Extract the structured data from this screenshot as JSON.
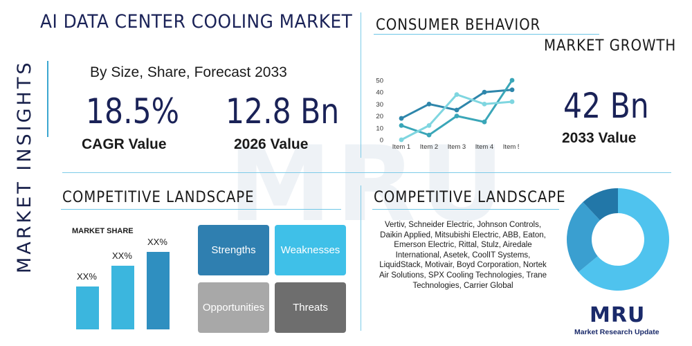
{
  "title": "AI DATA CENTER COOLING MARKET",
  "side_label": "MARKET INSIGHTS",
  "subtitle": "By Size, Share, Forecast 2033",
  "stats": {
    "cagr_value": "18.5%",
    "cagr_label": "CAGR Value",
    "size_2026_value": "12.8 Bn",
    "size_2026_label": "2026 Value",
    "size_2033_value": "42 Bn",
    "size_2033_label": "2033 Value"
  },
  "consumer_behavior": {
    "heading": "CONSUMER BEHAVIOR",
    "subheading": "MARKET GROWTH"
  },
  "chart_data": {
    "type": "line",
    "categories": [
      "Item 1",
      "Item 2",
      "Item 3",
      "Item 4",
      "Item 5"
    ],
    "ylim": [
      0,
      50
    ],
    "yticks": [
      "0",
      "10",
      "20",
      "30",
      "40",
      "50"
    ],
    "grid": false,
    "series": [
      {
        "values": [
          18,
          30,
          25,
          40,
          42
        ],
        "color": "#2e86ab"
      },
      {
        "values": [
          12,
          4,
          20,
          15,
          50
        ],
        "color": "#3aa6b8"
      },
      {
        "values": [
          0,
          12,
          38,
          30,
          32
        ],
        "color": "#7fd6e0"
      }
    ]
  },
  "competitive_left": {
    "heading": "COMPETITIVE LANDSCAPE",
    "market_share_title": "MARKET SHARE",
    "bars": [
      {
        "label": "XX%",
        "value": 0.55
      },
      {
        "label": "XX%",
        "value": 0.82
      },
      {
        "label": "XX%",
        "value": 1.0
      }
    ],
    "swot": {
      "strengths": "Strengths",
      "weaknesses": "Weaknesses",
      "opportunities": "Opportunities",
      "threats": "Threats"
    }
  },
  "competitive_right": {
    "heading": "COMPETITIVE LANDSCAPE",
    "companies": "Vertiv, Schneider Electric, Johnson Controls, Daikin Applied, Mitsubishi Electric, ABB, Eaton, Emerson Electric, Rittal, Stulz, Airedale International, Asetek, CoolIT Systems, LiquidStack, Motivair, Boyd Corporation, Nortek Air Solutions, SPX Cooling Technologies, Trane Technologies, Carrier Global"
  },
  "donut": {
    "segments": [
      {
        "value": 0.64,
        "color": "#4fc3ee"
      },
      {
        "value": 0.24,
        "color": "#3a9fd0"
      },
      {
        "value": 0.12,
        "color": "#2277a8"
      }
    ]
  },
  "logo": {
    "mark": "MRU",
    "name": "Market Research Update"
  },
  "watermark": "MRU"
}
